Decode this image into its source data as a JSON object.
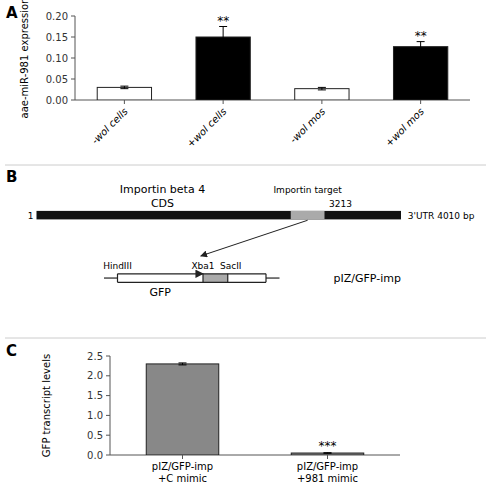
{
  "chart_data": [
    {
      "type": "bar",
      "title": "A",
      "categories": [
        "-wol cells",
        "+wol cells",
        "-wol mos",
        "+wol mos"
      ],
      "values": [
        0.03,
        0.15,
        0.027,
        0.127
      ],
      "errors": [
        0.003,
        0.025,
        0.003,
        0.012
      ],
      "colors": [
        "white",
        "black",
        "white",
        "black"
      ],
      "ylabel": "aae-miR-981 expression",
      "ylim": [
        0,
        0.2
      ],
      "yticks": [
        {
          "value": 0.0,
          "label": "0.00"
        },
        0.05,
        {
          "value": 0.1,
          "label": "0.10"
        },
        0.15,
        {
          "value": 0.2,
          "label": "0.20"
        }
      ],
      "annotations": [
        {
          "text": "**",
          "x": "+wol cells",
          "y": 0.178
        },
        {
          "text": "**",
          "x": "+wol mos",
          "y": 0.142
        }
      ],
      "grid": false
    },
    {
      "type": "diagram",
      "title": "B",
      "annotations": [
        "Importin beta 4",
        "CDS",
        "Importin target",
        "1",
        "3213",
        "3'UTR  4010 bp",
        "HindIII",
        "Xba1",
        "SacII",
        "GFP",
        "pIZ/GFP-imp"
      ]
    },
    {
      "type": "bar",
      "title": "C",
      "categories": [
        "pIZ/GFP-imp\n+C mimic",
        "pIZ/GFP-imp\n+981 mimic"
      ],
      "values": [
        2.3,
        0.05
      ],
      "errors": [
        0.025,
        0.008
      ],
      "colors": [
        "#888888",
        "#888888"
      ],
      "ylabel": "GFP transcript levels",
      "ylim": [
        0,
        2.5
      ],
      "yticks": [
        {
          "value": 0.0,
          "label": "0.0"
        },
        0.5,
        {
          "value": 1.0,
          "label": "1.0"
        },
        1.5,
        {
          "value": 2.0,
          "label": "2.0"
        },
        2.5
      ],
      "annotations": [
        {
          "text": "***",
          "x": "pIZ/GFP-imp\n+981 mimic",
          "y": 0.13
        }
      ],
      "grid": false
    }
  ]
}
